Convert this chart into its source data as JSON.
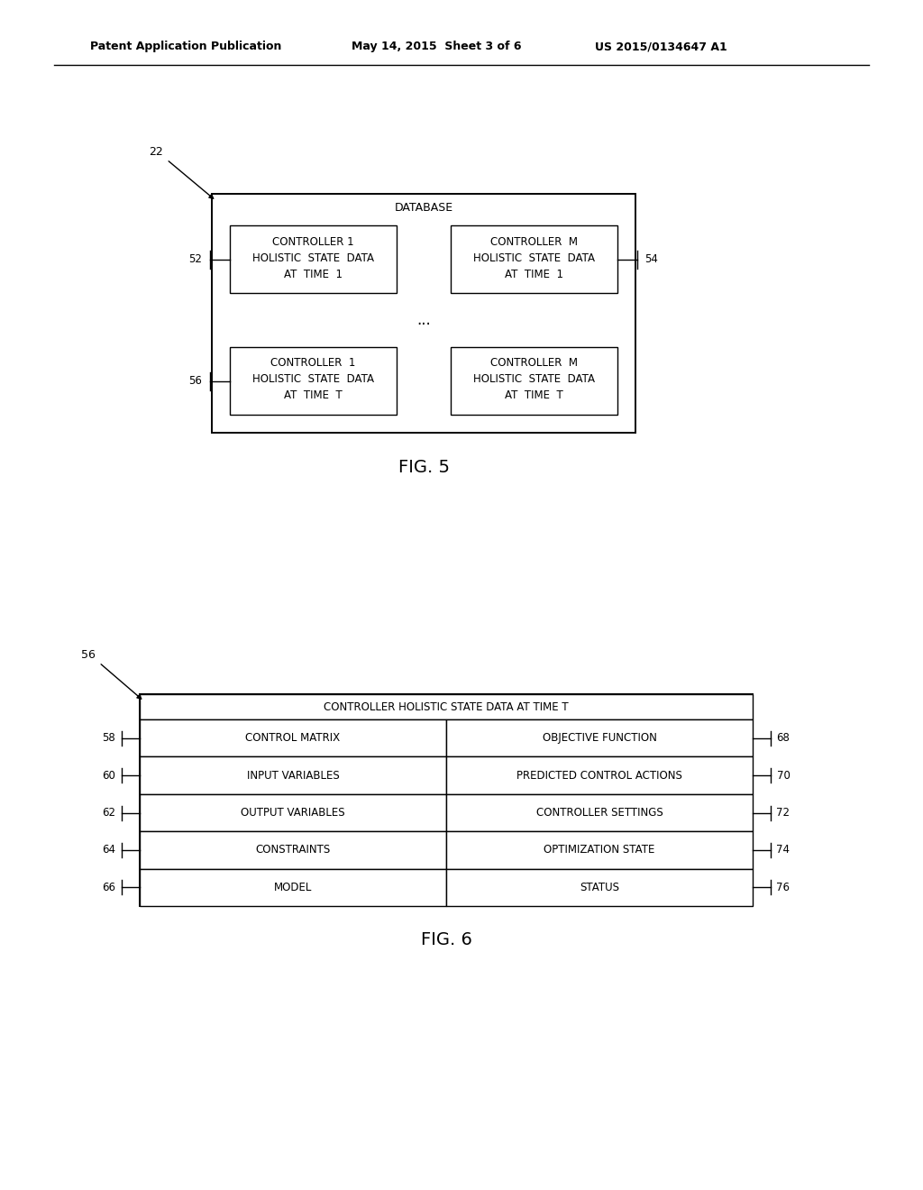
{
  "bg_color": "#ffffff",
  "header_left": "Patent Application Publication",
  "header_mid": "May 14, 2015  Sheet 3 of 6",
  "header_right": "US 2015/0134647 A1",
  "fig5": {
    "caption": "FIG. 5",
    "label22": "22",
    "label52": "52",
    "label54": "54",
    "label56": "56",
    "database_title": "DATABASE",
    "dots": "...",
    "box1_lines": [
      "CONTROLLER 1",
      "HOLISTIC STATE DATA",
      "AT TIME 1"
    ],
    "box2_lines": [
      "CONTROLLER M",
      "HOLISTIC STATE DATA",
      "AT TIME 1"
    ],
    "box3_lines": [
      "CONTROLLER 1",
      "HOLISTIC STATE DATA",
      "AT TIME T"
    ],
    "box4_lines": [
      "CONTROLLER M",
      "HOLISTIC STATE DATA",
      "AT TIME T"
    ]
  },
  "fig6": {
    "caption": "FIG. 6",
    "label56": "56",
    "title": "CONTROLLER HOLISTIC STATE DATA AT TIME T",
    "rows": [
      {
        "left": "CONTROL MATRIX",
        "ll": "58",
        "right": "OBJECTIVE FUNCTION",
        "rl": "68"
      },
      {
        "left": "INPUT VARIABLES",
        "ll": "60",
        "right": "PREDICTED CONTROL ACTIONS",
        "rl": "70"
      },
      {
        "left": "OUTPUT VARIABLES",
        "ll": "62",
        "right": "CONTROLLER SETTINGS",
        "rl": "72"
      },
      {
        "left": "CONSTRAINTS",
        "ll": "64",
        "right": "OPTIMIZATION STATE",
        "rl": "74"
      },
      {
        "left": "MODEL",
        "ll": "66",
        "right": "STATUS",
        "rl": "76"
      }
    ]
  }
}
